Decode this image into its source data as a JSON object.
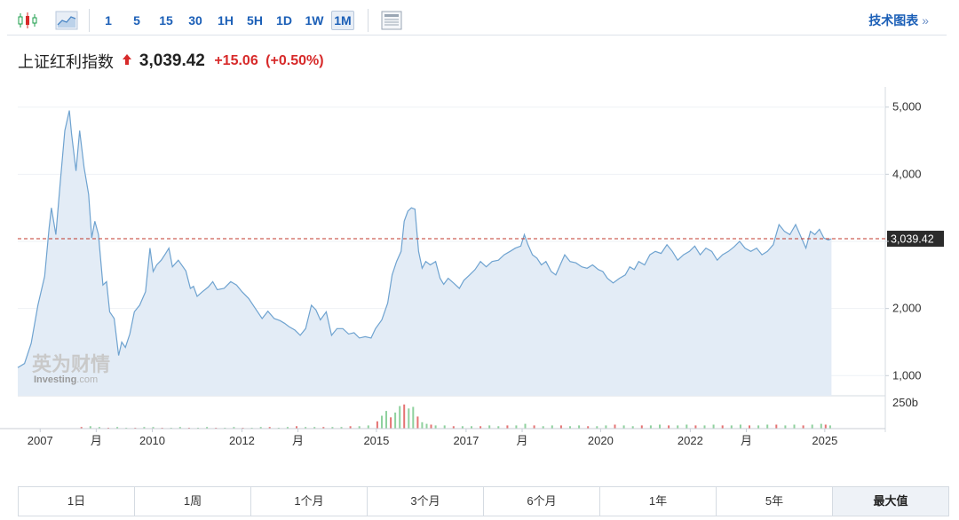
{
  "toolbar": {
    "icons": [
      "candlestick-icon",
      "area-chart-icon",
      "table-view-icon"
    ],
    "intervals": [
      "1",
      "5",
      "15",
      "30",
      "1H",
      "5H",
      "1D",
      "1W",
      "1M"
    ],
    "active_interval": "1M",
    "tech_chart_label": "技术图表",
    "tech_chart_arrow": "»"
  },
  "quote": {
    "name": "上证红利指数",
    "price": "3,039.42",
    "change": "+15.06",
    "change_pct": "(+0.50%)",
    "direction": "up",
    "up_color": "#d72a2a"
  },
  "watermark": {
    "cn": "英为财情",
    "en": "Investing",
    "en_suffix": ".com"
  },
  "periods": [
    "1日",
    "1周",
    "1个月",
    "3个月",
    "6个月",
    "1年",
    "5年",
    "最大值"
  ],
  "active_period": "最大值",
  "chart_data": {
    "type": "area",
    "title": "",
    "xlabel": "",
    "ylabel": "",
    "ylim": [
      700,
      5300
    ],
    "yticks": [
      1000,
      2000,
      3000,
      4000,
      5000
    ],
    "ytick_labels": [
      "1,000",
      "2,000",
      "",
      "4,000",
      "5,000"
    ],
    "xlim": [
      2006.0,
      2025.35
    ],
    "xtick_labels": [
      {
        "x": 2006.5,
        "label": "2007"
      },
      {
        "x": 2007.75,
        "label": "月"
      },
      {
        "x": 2009.0,
        "label": "2010"
      },
      {
        "x": 2011.0,
        "label": "2012"
      },
      {
        "x": 2012.25,
        "label": "月"
      },
      {
        "x": 2014.0,
        "label": "2015"
      },
      {
        "x": 2016.0,
        "label": "2017"
      },
      {
        "x": 2017.25,
        "label": "月"
      },
      {
        "x": 2019.0,
        "label": "2020"
      },
      {
        "x": 2021.0,
        "label": "2022"
      },
      {
        "x": 2022.25,
        "label": "月"
      },
      {
        "x": 2024.0,
        "label": "2025"
      }
    ],
    "last_price": 3039.42,
    "last_price_label": "3,039.42",
    "volume_label": "250b",
    "line_color": "#6fa3d0",
    "fill_color": "#e3ecf6",
    "ref_line_color": "#c0392b",
    "series": [
      {
        "name": "",
        "points": [
          [
            2006.0,
            1120
          ],
          [
            2006.15,
            1180
          ],
          [
            2006.3,
            1480
          ],
          [
            2006.45,
            2050
          ],
          [
            2006.6,
            2480
          ],
          [
            2006.7,
            3200
          ],
          [
            2006.75,
            3500
          ],
          [
            2006.85,
            3100
          ],
          [
            2006.95,
            3900
          ],
          [
            2007.05,
            4650
          ],
          [
            2007.15,
            4950
          ],
          [
            2007.2,
            4600
          ],
          [
            2007.3,
            4050
          ],
          [
            2007.38,
            4650
          ],
          [
            2007.48,
            4100
          ],
          [
            2007.58,
            3700
          ],
          [
            2007.65,
            3050
          ],
          [
            2007.72,
            3300
          ],
          [
            2007.8,
            3100
          ],
          [
            2007.9,
            2350
          ],
          [
            2007.98,
            2400
          ],
          [
            2008.05,
            1950
          ],
          [
            2008.15,
            1850
          ],
          [
            2008.25,
            1300
          ],
          [
            2008.32,
            1500
          ],
          [
            2008.4,
            1420
          ],
          [
            2008.5,
            1620
          ],
          [
            2008.6,
            1950
          ],
          [
            2008.72,
            2050
          ],
          [
            2008.85,
            2250
          ],
          [
            2008.95,
            2900
          ],
          [
            2009.02,
            2550
          ],
          [
            2009.1,
            2650
          ],
          [
            2009.2,
            2720
          ],
          [
            2009.3,
            2820
          ],
          [
            2009.37,
            2900
          ],
          [
            2009.45,
            2620
          ],
          [
            2009.58,
            2720
          ],
          [
            2009.75,
            2560
          ],
          [
            2009.85,
            2300
          ],
          [
            2009.92,
            2330
          ],
          [
            2010.0,
            2180
          ],
          [
            2010.12,
            2250
          ],
          [
            2010.25,
            2320
          ],
          [
            2010.35,
            2400
          ],
          [
            2010.45,
            2280
          ],
          [
            2010.6,
            2300
          ],
          [
            2010.75,
            2400
          ],
          [
            2010.88,
            2350
          ],
          [
            2011.0,
            2250
          ],
          [
            2011.15,
            2150
          ],
          [
            2011.3,
            2000
          ],
          [
            2011.45,
            1850
          ],
          [
            2011.58,
            1960
          ],
          [
            2011.72,
            1850
          ],
          [
            2011.85,
            1820
          ],
          [
            2011.95,
            1780
          ],
          [
            2012.05,
            1730
          ],
          [
            2012.18,
            1680
          ],
          [
            2012.3,
            1600
          ],
          [
            2012.42,
            1700
          ],
          [
            2012.55,
            2050
          ],
          [
            2012.65,
            1980
          ],
          [
            2012.75,
            1830
          ],
          [
            2012.88,
            1950
          ],
          [
            2013.0,
            1600
          ],
          [
            2013.12,
            1700
          ],
          [
            2013.25,
            1700
          ],
          [
            2013.38,
            1620
          ],
          [
            2013.5,
            1640
          ],
          [
            2013.62,
            1560
          ],
          [
            2013.75,
            1580
          ],
          [
            2013.88,
            1560
          ],
          [
            2013.98,
            1700
          ],
          [
            2014.12,
            1830
          ],
          [
            2014.25,
            2080
          ],
          [
            2014.35,
            2500
          ],
          [
            2014.45,
            2700
          ],
          [
            2014.55,
            2850
          ],
          [
            2014.62,
            3300
          ],
          [
            2014.7,
            3450
          ],
          [
            2014.78,
            3500
          ],
          [
            2014.86,
            3480
          ],
          [
            2014.94,
            2850
          ],
          [
            2015.02,
            2600
          ],
          [
            2015.1,
            2700
          ],
          [
            2015.2,
            2650
          ],
          [
            2015.32,
            2700
          ],
          [
            2015.42,
            2450
          ],
          [
            2015.5,
            2360
          ],
          [
            2015.6,
            2450
          ],
          [
            2015.72,
            2380
          ],
          [
            2015.85,
            2300
          ],
          [
            2015.95,
            2420
          ],
          [
            2016.08,
            2500
          ],
          [
            2016.2,
            2580
          ],
          [
            2016.32,
            2700
          ],
          [
            2016.45,
            2620
          ],
          [
            2016.58,
            2700
          ],
          [
            2016.72,
            2720
          ],
          [
            2016.85,
            2800
          ],
          [
            2016.98,
            2850
          ],
          [
            2017.1,
            2900
          ],
          [
            2017.22,
            2930
          ],
          [
            2017.3,
            3100
          ],
          [
            2017.38,
            2950
          ],
          [
            2017.48,
            2800
          ],
          [
            2017.58,
            2750
          ],
          [
            2017.68,
            2650
          ],
          [
            2017.78,
            2700
          ],
          [
            2017.9,
            2550
          ],
          [
            2018.0,
            2500
          ],
          [
            2018.1,
            2650
          ],
          [
            2018.2,
            2800
          ],
          [
            2018.32,
            2700
          ],
          [
            2018.45,
            2680
          ],
          [
            2018.58,
            2620
          ],
          [
            2018.7,
            2600
          ],
          [
            2018.82,
            2650
          ],
          [
            2018.95,
            2580
          ],
          [
            2019.05,
            2550
          ],
          [
            2019.15,
            2450
          ],
          [
            2019.28,
            2380
          ],
          [
            2019.42,
            2450
          ],
          [
            2019.55,
            2500
          ],
          [
            2019.65,
            2620
          ],
          [
            2019.75,
            2580
          ],
          [
            2019.85,
            2700
          ],
          [
            2019.98,
            2650
          ],
          [
            2020.1,
            2800
          ],
          [
            2020.22,
            2850
          ],
          [
            2020.35,
            2820
          ],
          [
            2020.48,
            2950
          ],
          [
            2020.6,
            2850
          ],
          [
            2020.72,
            2720
          ],
          [
            2020.85,
            2800
          ],
          [
            2020.98,
            2850
          ],
          [
            2021.1,
            2930
          ],
          [
            2021.22,
            2800
          ],
          [
            2021.35,
            2900
          ],
          [
            2021.48,
            2850
          ],
          [
            2021.6,
            2720
          ],
          [
            2021.72,
            2800
          ],
          [
            2021.85,
            2850
          ],
          [
            2021.98,
            2920
          ],
          [
            2022.1,
            3000
          ],
          [
            2022.22,
            2900
          ],
          [
            2022.35,
            2850
          ],
          [
            2022.48,
            2900
          ],
          [
            2022.6,
            2800
          ],
          [
            2022.72,
            2850
          ],
          [
            2022.85,
            2950
          ],
          [
            2022.98,
            3250
          ],
          [
            2023.1,
            3150
          ],
          [
            2023.22,
            3100
          ],
          [
            2023.35,
            3250
          ],
          [
            2023.48,
            3050
          ],
          [
            2023.58,
            2900
          ],
          [
            2023.68,
            3150
          ],
          [
            2023.78,
            3100
          ],
          [
            2023.88,
            3180
          ],
          [
            2023.98,
            3050
          ],
          [
            2024.08,
            3020
          ],
          [
            2024.15,
            3039
          ]
        ]
      }
    ],
    "volume": [
      [
        2007.4,
        2
      ],
      [
        2007.6,
        3
      ],
      [
        2007.8,
        2
      ],
      [
        2008.0,
        1
      ],
      [
        2008.2,
        2
      ],
      [
        2008.4,
        1
      ],
      [
        2008.6,
        1
      ],
      [
        2008.8,
        2
      ],
      [
        2009.0,
        2
      ],
      [
        2009.2,
        1
      ],
      [
        2009.4,
        1
      ],
      [
        2009.6,
        2
      ],
      [
        2009.8,
        1
      ],
      [
        2010.0,
        1
      ],
      [
        2010.2,
        2
      ],
      [
        2010.4,
        1
      ],
      [
        2010.6,
        1
      ],
      [
        2010.8,
        2
      ],
      [
        2011.0,
        1
      ],
      [
        2011.2,
        1
      ],
      [
        2011.4,
        2
      ],
      [
        2011.6,
        2
      ],
      [
        2011.8,
        1
      ],
      [
        2012.0,
        2
      ],
      [
        2012.2,
        3
      ],
      [
        2012.4,
        2
      ],
      [
        2012.6,
        2
      ],
      [
        2012.8,
        2
      ],
      [
        2013.0,
        2
      ],
      [
        2013.2,
        2
      ],
      [
        2013.4,
        3
      ],
      [
        2013.6,
        3
      ],
      [
        2013.8,
        4
      ],
      [
        2014.0,
        9
      ],
      [
        2014.1,
        16
      ],
      [
        2014.2,
        22
      ],
      [
        2014.3,
        14
      ],
      [
        2014.4,
        20
      ],
      [
        2014.5,
        28
      ],
      [
        2014.6,
        30
      ],
      [
        2014.7,
        25
      ],
      [
        2014.8,
        27
      ],
      [
        2014.9,
        15
      ],
      [
        2015.0,
        8
      ],
      [
        2015.1,
        6
      ],
      [
        2015.2,
        5
      ],
      [
        2015.3,
        4
      ],
      [
        2015.5,
        4
      ],
      [
        2015.7,
        3
      ],
      [
        2015.9,
        3
      ],
      [
        2016.1,
        3
      ],
      [
        2016.3,
        3
      ],
      [
        2016.5,
        4
      ],
      [
        2016.7,
        3
      ],
      [
        2016.9,
        4
      ],
      [
        2017.1,
        4
      ],
      [
        2017.3,
        6
      ],
      [
        2017.5,
        4
      ],
      [
        2017.7,
        3
      ],
      [
        2017.9,
        4
      ],
      [
        2018.1,
        4
      ],
      [
        2018.3,
        3
      ],
      [
        2018.5,
        4
      ],
      [
        2018.7,
        3
      ],
      [
        2018.9,
        3
      ],
      [
        2019.1,
        4
      ],
      [
        2019.3,
        5
      ],
      [
        2019.5,
        4
      ],
      [
        2019.7,
        3
      ],
      [
        2019.9,
        4
      ],
      [
        2020.1,
        4
      ],
      [
        2020.3,
        5
      ],
      [
        2020.5,
        4
      ],
      [
        2020.7,
        4
      ],
      [
        2020.9,
        5
      ],
      [
        2021.1,
        4
      ],
      [
        2021.3,
        4
      ],
      [
        2021.5,
        5
      ],
      [
        2021.7,
        4
      ],
      [
        2021.9,
        4
      ],
      [
        2022.1,
        5
      ],
      [
        2022.3,
        4
      ],
      [
        2022.5,
        4
      ],
      [
        2022.7,
        5
      ],
      [
        2022.9,
        5
      ],
      [
        2023.1,
        4
      ],
      [
        2023.3,
        5
      ],
      [
        2023.5,
        4
      ],
      [
        2023.7,
        5
      ],
      [
        2023.9,
        6
      ],
      [
        2024.0,
        5
      ],
      [
        2024.1,
        4
      ]
    ]
  }
}
